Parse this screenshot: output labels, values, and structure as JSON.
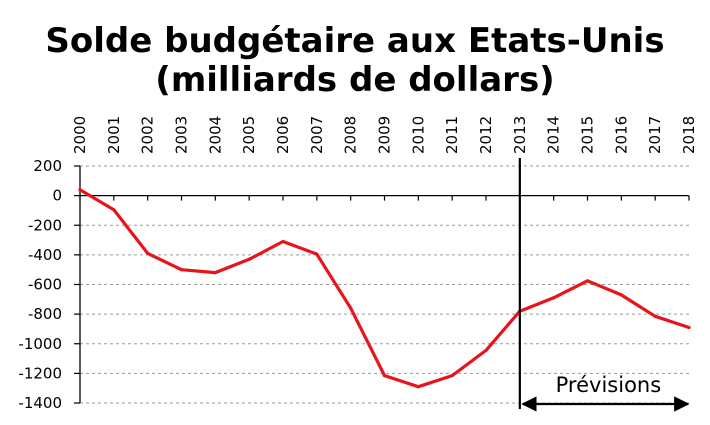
{
  "chart_data": {
    "type": "line",
    "title_lines": [
      "Solde budgétaire aux Etats-Unis",
      "(milliards de dollars)"
    ],
    "xlabel": "",
    "ylabel": "",
    "categories": [
      "2000",
      "2001",
      "2002",
      "2003",
      "2004",
      "2005",
      "2006",
      "2007",
      "2008",
      "2009",
      "2010",
      "2011",
      "2012",
      "2013",
      "2014",
      "2015",
      "2016",
      "2017",
      "2018"
    ],
    "series": [
      {
        "values": [
          40,
          -95,
          -390,
          -500,
          -520,
          -430,
          -310,
          -395,
          -760,
          -1215,
          -1290,
          -1215,
          -1045,
          -780,
          -690,
          -575,
          -670,
          -815,
          -890
        ]
      }
    ],
    "ylim": [
      -1400,
      200
    ],
    "yticks": [
      200,
      0,
      -200,
      -400,
      -600,
      -800,
      -1000,
      -1200,
      -1400
    ],
    "grid": "horizontal-dashed",
    "forecast_start": "2013",
    "forecast_end": "2018",
    "annotation": "Prévisions",
    "colors": {
      "line": "#e8141b",
      "axis": "#000000",
      "grid": "#9a9a9a"
    }
  }
}
